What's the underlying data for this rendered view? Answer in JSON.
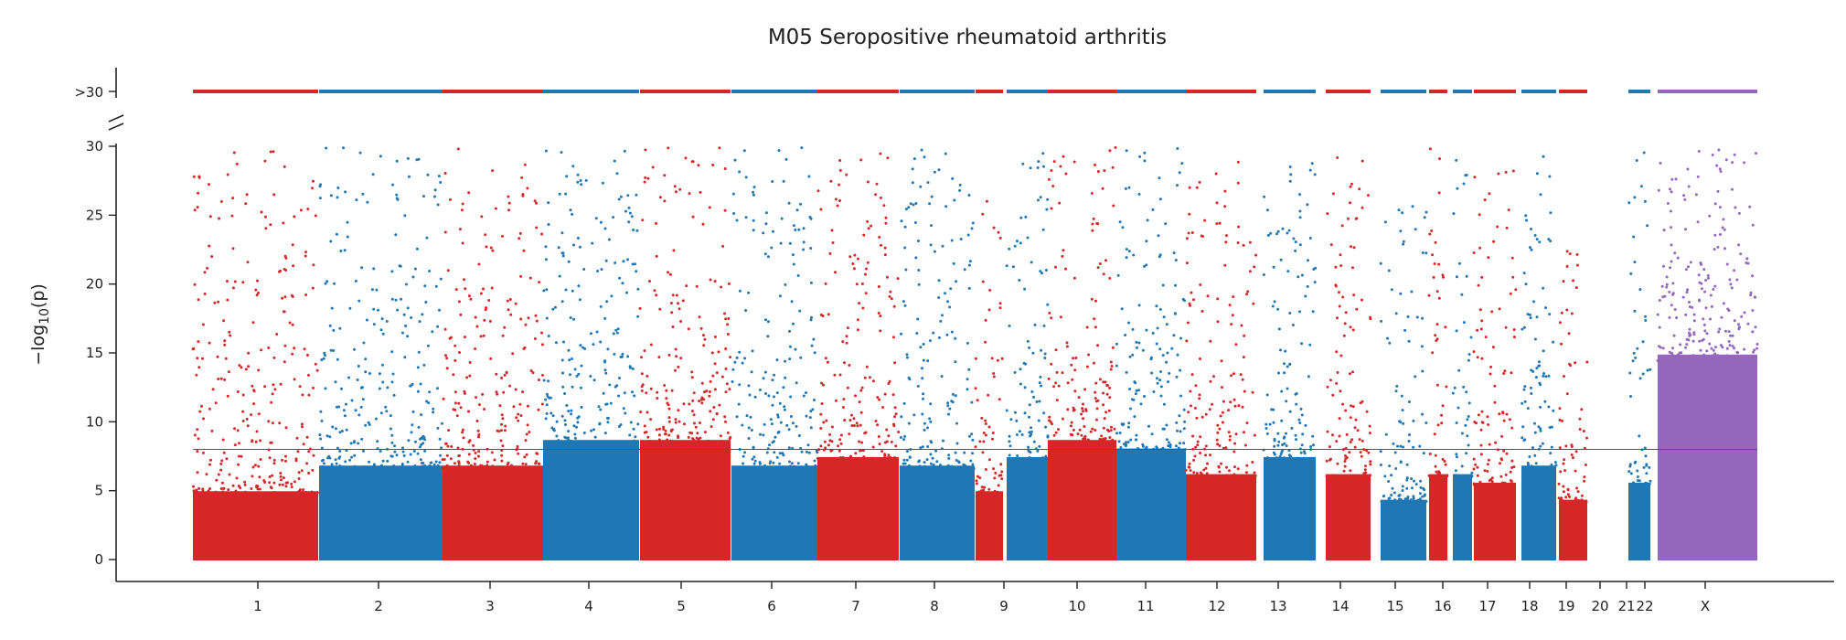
{
  "chart_data": {
    "type": "scatter",
    "subtype": "manhattan",
    "title": "M05 Seropositive rheumatoid arthritis",
    "ylabel": "−log",
    "ylabel_sub": "10",
    "ylabel_suffix": "(p)",
    "ylim": [
      0,
      30
    ],
    "yticks": [
      0,
      5,
      10,
      15,
      20,
      25,
      30
    ],
    "ytick_labels": [
      "0",
      "5",
      "10",
      "15",
      "20",
      "25",
      "30"
    ],
    "capped_label": ">30",
    "threshold": 8,
    "grid": false,
    "legend": "none",
    "colors": {
      "red": "#d62728",
      "blue": "#1f77b4",
      "purple": "#9467bd",
      "axis": "#222222",
      "threshold": "#555555"
    },
    "chromosomes": [
      {
        "name": "1",
        "color": "red",
        "dense_max": 8,
        "sparse_max": 29.7,
        "capped": true
      },
      {
        "name": "2",
        "color": "blue",
        "dense_max": 11,
        "sparse_max": 30,
        "capped": true
      },
      {
        "name": "3",
        "color": "red",
        "dense_max": 11,
        "sparse_max": 30,
        "capped": true
      },
      {
        "name": "4",
        "color": "blue",
        "dense_max": 14,
        "sparse_max": 30,
        "capped": true
      },
      {
        "name": "5",
        "color": "red",
        "dense_max": 14,
        "sparse_max": 30,
        "capped": true
      },
      {
        "name": "6",
        "color": "blue",
        "dense_max": 11,
        "sparse_max": 30,
        "capped": true
      },
      {
        "name": "7",
        "color": "red",
        "dense_max": 12,
        "sparse_max": 29.5,
        "capped": true
      },
      {
        "name": "8",
        "color": "blue",
        "dense_max": 11,
        "sparse_max": 30,
        "capped": true
      },
      {
        "name": "9",
        "color": "red",
        "dense_max": 8,
        "sparse_max": 29.5,
        "capped": true
      },
      {
        "name": "10",
        "color": "blue",
        "dense_max": 12,
        "sparse_max": 30,
        "capped": true
      },
      {
        "name": "11",
        "color": "red",
        "dense_max": 14,
        "sparse_max": 30,
        "capped": true
      },
      {
        "name": "12",
        "color": "blue",
        "dense_max": 13,
        "sparse_max": 30,
        "capped": true
      },
      {
        "name": "13",
        "color": "red",
        "dense_max": 10,
        "sparse_max": 30,
        "capped": true
      },
      {
        "name": "14",
        "color": "blue",
        "dense_max": 12,
        "sparse_max": 30,
        "capped": true
      },
      {
        "name": "15",
        "color": "red",
        "dense_max": 10,
        "sparse_max": 30,
        "capped": true
      },
      {
        "name": "16",
        "color": "blue",
        "dense_max": 7,
        "sparse_max": 26,
        "capped": true
      },
      {
        "name": "17",
        "color": "red",
        "dense_max": 10,
        "sparse_max": 30,
        "capped": true
      },
      {
        "name": "18",
        "color": "blue",
        "dense_max": 10,
        "sparse_max": 29.5,
        "capped": true
      },
      {
        "name": "19",
        "color": "red",
        "dense_max": 9,
        "sparse_max": 29,
        "capped": true
      },
      {
        "name": "20",
        "color": "blue",
        "dense_max": 11,
        "sparse_max": 29.5,
        "capped": true
      },
      {
        "name": "21",
        "color": "red",
        "dense_max": 7,
        "sparse_max": 23,
        "capped": true
      },
      {
        "name": "22",
        "color": "blue",
        "dense_max": 9,
        "sparse_max": 30,
        "capped": true
      },
      {
        "name": "X",
        "color": "purple",
        "dense_max": 24,
        "sparse_max": 30,
        "capped": true
      }
    ]
  }
}
